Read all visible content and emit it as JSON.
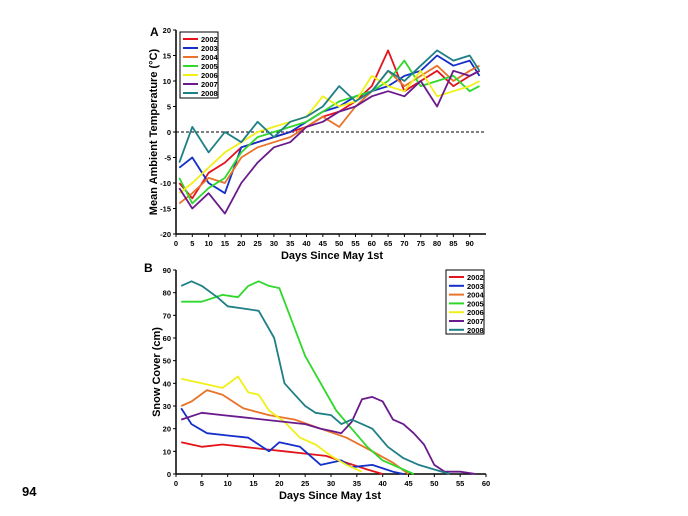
{
  "page_number": "94",
  "colors": {
    "2002": "#e3141b",
    "2003": "#1430c8",
    "2004": "#e8732a",
    "2005": "#2fd82a",
    "2006": "#f0f018",
    "2007": "#6a1a8c",
    "2008": "#1f7f86"
  },
  "chart_data": [
    {
      "type": "line",
      "panel_label": "A",
      "xlabel": "Days Since May 1st",
      "ylabel": "Mean Ambient Temperature (°C)",
      "xlim": [
        0,
        95
      ],
      "ylim": [
        -20,
        20
      ],
      "xticks": [
        0,
        5,
        10,
        15,
        20,
        25,
        30,
        35,
        40,
        45,
        50,
        55,
        60,
        65,
        70,
        75,
        80,
        85,
        90
      ],
      "yticks": [
        -20,
        -15,
        -10,
        -5,
        0,
        5,
        10,
        15,
        20
      ],
      "reference_line": 0,
      "legend_position": "top-left",
      "x": [
        1,
        5,
        10,
        15,
        20,
        25,
        30,
        35,
        40,
        45,
        50,
        55,
        60,
        65,
        70,
        75,
        80,
        85,
        90,
        93
      ],
      "series": [
        {
          "name": "2002",
          "values": [
            -10,
            -13,
            -8,
            -6,
            -3,
            -2,
            -1,
            0,
            1,
            3,
            4,
            6,
            9,
            16,
            8,
            10,
            12,
            9,
            11,
            12
          ]
        },
        {
          "name": "2003",
          "values": [
            -7,
            -5,
            -10,
            -12,
            -3,
            -2,
            -1,
            0,
            2,
            4,
            5,
            7,
            8,
            9,
            11,
            12,
            15,
            13,
            14,
            11
          ]
        },
        {
          "name": "2004",
          "values": [
            -14,
            -12,
            -9,
            -10,
            -5,
            -3,
            -2,
            -1,
            1,
            3,
            1,
            5,
            8,
            12,
            9,
            11,
            13,
            10,
            12,
            13
          ]
        },
        {
          "name": "2005",
          "values": [
            -9,
            -14,
            -11,
            -9,
            -4,
            -1,
            0,
            1,
            2,
            4,
            6,
            7,
            8,
            10,
            14,
            9,
            10,
            11,
            8,
            9
          ]
        },
        {
          "name": "2006",
          "values": [
            -12,
            -10,
            -7,
            -4,
            -2,
            0,
            1,
            2,
            3,
            7,
            5,
            6,
            11,
            9,
            8,
            12,
            7,
            8,
            9,
            10
          ]
        },
        {
          "name": "2007",
          "values": [
            -11,
            -15,
            -12,
            -16,
            -10,
            -6,
            -3,
            -2,
            1,
            2,
            4,
            5,
            7,
            8,
            7,
            10,
            5,
            12,
            11,
            12
          ]
        },
        {
          "name": "2008",
          "values": [
            -6,
            1,
            -4,
            0,
            -2,
            2,
            -1,
            2,
            3,
            5,
            9,
            6,
            8,
            12,
            10,
            13,
            16,
            14,
            15,
            12
          ]
        }
      ]
    },
    {
      "type": "line",
      "panel_label": "B",
      "xlabel": "Days Since May 1st",
      "ylabel": "Snow Cover (cm)",
      "xlim": [
        0,
        60
      ],
      "ylim": [
        0,
        90
      ],
      "xticks": [
        0,
        5,
        10,
        15,
        20,
        25,
        30,
        35,
        40,
        45,
        50,
        55,
        60
      ],
      "yticks": [
        0,
        10,
        20,
        30,
        40,
        50,
        60,
        70,
        80,
        90
      ],
      "legend_position": "top-right",
      "series": [
        {
          "name": "2002",
          "x": [
            1,
            5,
            9,
            13,
            17,
            21,
            25,
            29,
            33,
            37,
            40
          ],
          "values": [
            14,
            12,
            13,
            12,
            11,
            10,
            9,
            8,
            5,
            2,
            0
          ]
        },
        {
          "name": "2003",
          "x": [
            1,
            3,
            6,
            10,
            14,
            18,
            20,
            24,
            28,
            32,
            34,
            38,
            42,
            44
          ],
          "values": [
            29,
            22,
            18,
            17,
            16,
            10,
            14,
            12,
            4,
            6,
            3,
            4,
            1,
            0
          ]
        },
        {
          "name": "2004",
          "x": [
            1,
            3,
            6,
            9,
            13,
            18,
            23,
            28,
            33,
            38,
            42,
            45
          ],
          "values": [
            30,
            32,
            37,
            35,
            29,
            26,
            24,
            20,
            16,
            10,
            5,
            0
          ]
        },
        {
          "name": "2005",
          "x": [
            1,
            5,
            9,
            12,
            14,
            16,
            18,
            20,
            22,
            25,
            28,
            31,
            34,
            37,
            40,
            43,
            46
          ],
          "values": [
            76,
            76,
            79,
            78,
            83,
            85,
            83,
            82,
            70,
            52,
            40,
            28,
            20,
            12,
            6,
            3,
            0
          ]
        },
        {
          "name": "2006",
          "x": [
            1,
            5,
            9,
            12,
            14,
            16,
            18,
            21,
            24,
            27,
            30,
            33,
            36
          ],
          "values": [
            42,
            40,
            38,
            43,
            36,
            35,
            28,
            23,
            16,
            13,
            8,
            4,
            1
          ]
        },
        {
          "name": "2007",
          "x": [
            1,
            5,
            9,
            13,
            17,
            21,
            25,
            28,
            30,
            32,
            34,
            36,
            38,
            40,
            42,
            44,
            46,
            48,
            50,
            52,
            55,
            58
          ],
          "values": [
            24,
            27,
            26,
            25,
            24,
            23,
            22,
            20,
            19,
            18,
            23,
            33,
            34,
            32,
            24,
            22,
            18,
            13,
            4,
            1,
            1,
            0
          ]
        },
        {
          "name": "2008",
          "x": [
            1,
            3,
            5,
            8,
            10,
            13,
            16,
            19,
            21,
            23,
            25,
            27,
            30,
            32,
            34,
            36,
            38,
            41,
            44,
            47,
            50,
            53
          ],
          "values": [
            83,
            85,
            83,
            78,
            74,
            73,
            72,
            60,
            40,
            35,
            30,
            27,
            26,
            22,
            24,
            22,
            20,
            12,
            7,
            4,
            2,
            0
          ]
        }
      ]
    }
  ]
}
